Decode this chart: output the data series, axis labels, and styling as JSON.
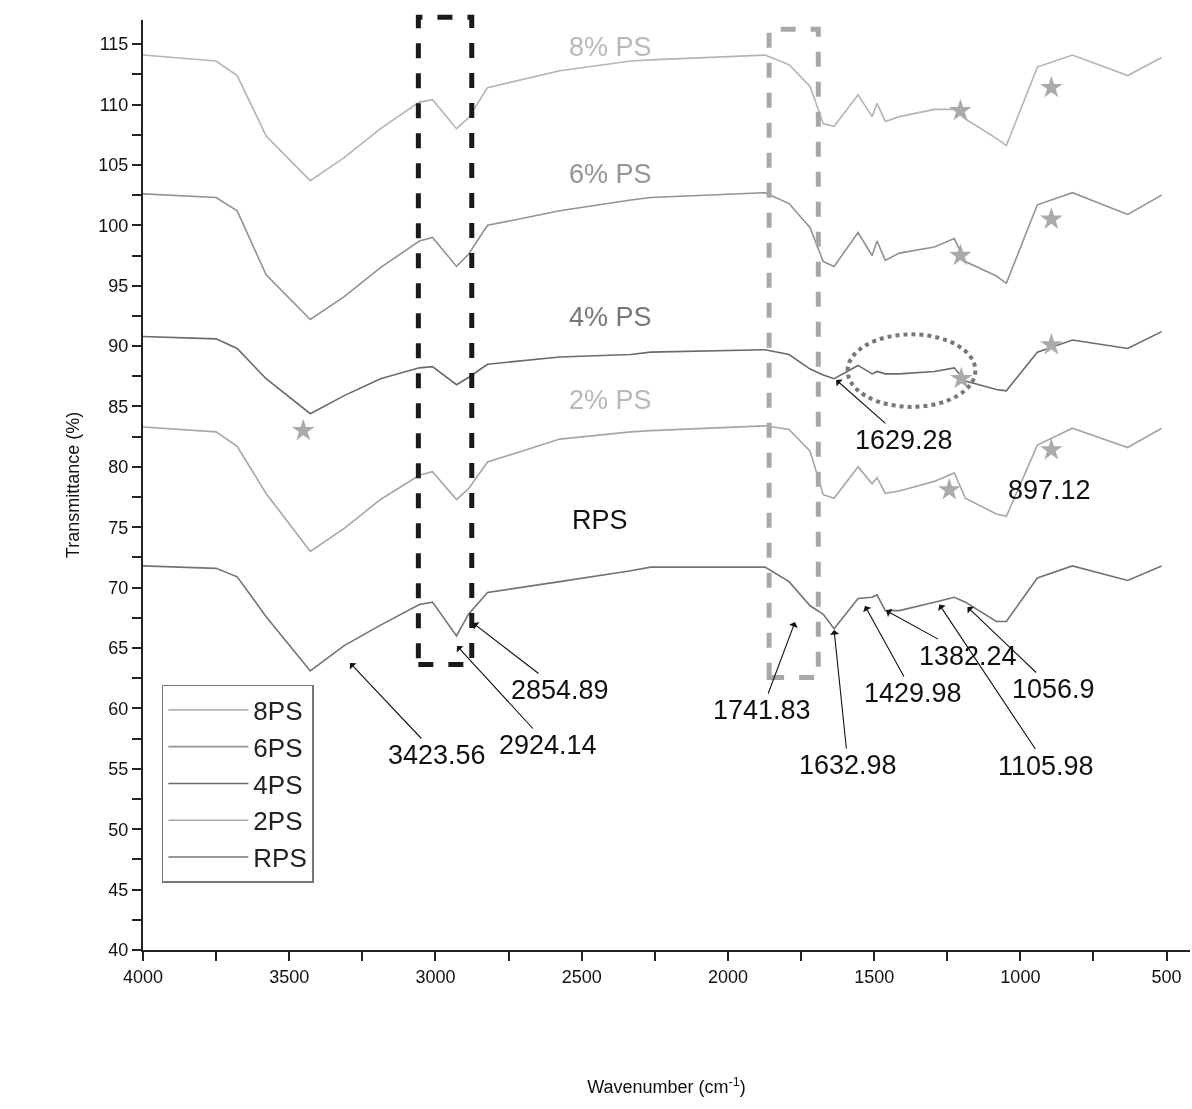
{
  "chart_data": {
    "type": "line",
    "xlabel": "Wavenumber (cm$^{-1}$)",
    "ylabel": "Transmittance (%)",
    "x": [
      4000,
      3750,
      3678,
      3579,
      3428,
      3312,
      3188,
      3055,
      3010,
      2928,
      2887,
      2822,
      2575,
      2332,
      2264,
      1873,
      1791,
      1719,
      1674,
      1637,
      1555,
      1507,
      1490,
      1462,
      1414,
      1294,
      1226,
      1188,
      1082,
      1048,
      942,
      822,
      633,
      517
    ],
    "series": [
      {
        "name": "8PS",
        "color": "#b4b4b4",
        "values": [
          114.1,
          113.6,
          112.4,
          107.4,
          103.7,
          105.6,
          108.0,
          110.2,
          110.4,
          108.0,
          108.9,
          111.4,
          112.8,
          113.6,
          113.7,
          114.1,
          113.3,
          111.5,
          108.4,
          108.2,
          110.8,
          109.0,
          110.1,
          108.6,
          109.0,
          109.6,
          109.6,
          108.8,
          107.2,
          106.6,
          113.1,
          114.1,
          112.4,
          113.9
        ]
      },
      {
        "name": "6PS",
        "color": "#929292",
        "values": [
          102.6,
          102.3,
          101.2,
          95.9,
          92.2,
          94.1,
          96.5,
          98.7,
          99.0,
          96.6,
          97.6,
          100.0,
          101.2,
          102.1,
          102.3,
          102.7,
          101.8,
          99.8,
          97.0,
          96.6,
          99.4,
          97.5,
          98.7,
          97.1,
          97.7,
          98.2,
          98.9,
          97.0,
          95.8,
          95.2,
          101.7,
          102.7,
          100.9,
          102.5
        ]
      },
      {
        "name": "4PS",
        "color": "#6a6a6a",
        "values": [
          90.8,
          90.6,
          89.8,
          87.3,
          84.4,
          85.9,
          87.3,
          88.2,
          88.3,
          86.8,
          87.4,
          88.5,
          89.1,
          89.3,
          89.5,
          89.7,
          89.3,
          88.1,
          87.6,
          87.3,
          88.4,
          87.7,
          87.9,
          87.7,
          87.7,
          87.9,
          88.2,
          87.1,
          86.4,
          86.3,
          89.5,
          90.5,
          89.8,
          91.2
        ]
      },
      {
        "name": "2PS",
        "color": "#a6a6a6",
        "values": [
          83.3,
          82.9,
          81.7,
          77.8,
          73.0,
          74.9,
          77.3,
          79.3,
          79.6,
          77.3,
          78.2,
          80.4,
          82.3,
          82.9,
          83.0,
          83.4,
          83.1,
          81.3,
          77.7,
          77.4,
          80.0,
          78.6,
          79.1,
          77.8,
          78.0,
          78.8,
          79.5,
          77.4,
          76.1,
          75.9,
          81.8,
          83.2,
          81.6,
          83.2
        ]
      },
      {
        "name": "RPS",
        "color": "#737373",
        "values": [
          71.8,
          71.6,
          70.9,
          67.6,
          63.1,
          65.2,
          66.9,
          68.6,
          68.8,
          66.0,
          67.8,
          69.6,
          70.5,
          71.4,
          71.7,
          71.7,
          70.5,
          68.5,
          67.8,
          66.6,
          69.1,
          69.2,
          69.4,
          68.1,
          68.1,
          68.8,
          69.2,
          68.8,
          67.2,
          67.2,
          70.8,
          71.8,
          70.6,
          71.8
        ]
      },
      {
        "type": "scatter",
        "marker": "star",
        "color": "#aaaaaa",
        "x": [
          3452,
          1205,
          894,
          1205,
          894,
          1202,
          894,
          1243,
          894
        ],
        "values": [
          83.0,
          109.5,
          111.4,
          97.5,
          100.5,
          87.3,
          90.1,
          78.1,
          81.4
        ]
      }
    ],
    "xlim": [
      4000,
      420
    ],
    "ylim": [
      40,
      117
    ],
    "xticks": [
      4000,
      {
        "value": 3750,
        "label": null
      },
      3500,
      {
        "value": 3250,
        "label": null
      },
      3000,
      {
        "value": 2750,
        "label": null
      },
      2500,
      {
        "value": 2250,
        "label": null
      },
      2000,
      {
        "value": 1750,
        "label": null
      },
      1500,
      {
        "value": 1250,
        "label": null
      },
      1000,
      {
        "value": 750,
        "label": null
      },
      500
    ],
    "yticks": [
      40,
      {
        "value": 42.5,
        "label": null
      },
      45,
      {
        "value": 47.5,
        "label": null
      },
      50,
      {
        "value": 52.5,
        "label": null
      },
      55,
      {
        "value": 57.5,
        "label": null
      },
      60,
      {
        "value": 62.5,
        "label": null
      },
      65,
      {
        "value": 67.5,
        "label": null
      },
      70,
      {
        "value": 72.5,
        "label": null
      },
      75,
      {
        "value": 77.5,
        "label": null
      },
      80,
      {
        "value": 82.5,
        "label": null
      },
      85,
      {
        "value": 87.5,
        "label": null
      },
      90,
      {
        "value": 92.5,
        "label": null
      },
      95,
      {
        "value": 97.5,
        "label": null
      },
      100,
      {
        "value": 102.5,
        "label": null
      },
      105,
      {
        "value": 107.5,
        "label": null
      },
      110,
      {
        "value": 112.5,
        "label": null
      },
      115
    ],
    "legend": "bottom left",
    "marker": "none",
    "line_style": "solid",
    "annotations": [
      "8% PS",
      "6% PS",
      "4% PS",
      "2% PS",
      "RPS",
      "3423.56",
      "2924.14",
      "2854.89",
      "1741.83",
      {
        "text": "1632.98",
        "x": 1637,
        "y": 66.5
      },
      "1429.98",
      {
        "text": "1382.24",
        "x": 1459,
        "y": 68.1
      },
      {
        "text": "1105.98",
        "x": 1277,
        "y": 68.6
      },
      {
        "text": "1056.9",
        "x": 1181,
        "y": 68.4
      },
      {
        "text": "1629.28",
        "x": 1630,
        "y": 87.2
      },
      "897.12"
    ]
  }
}
